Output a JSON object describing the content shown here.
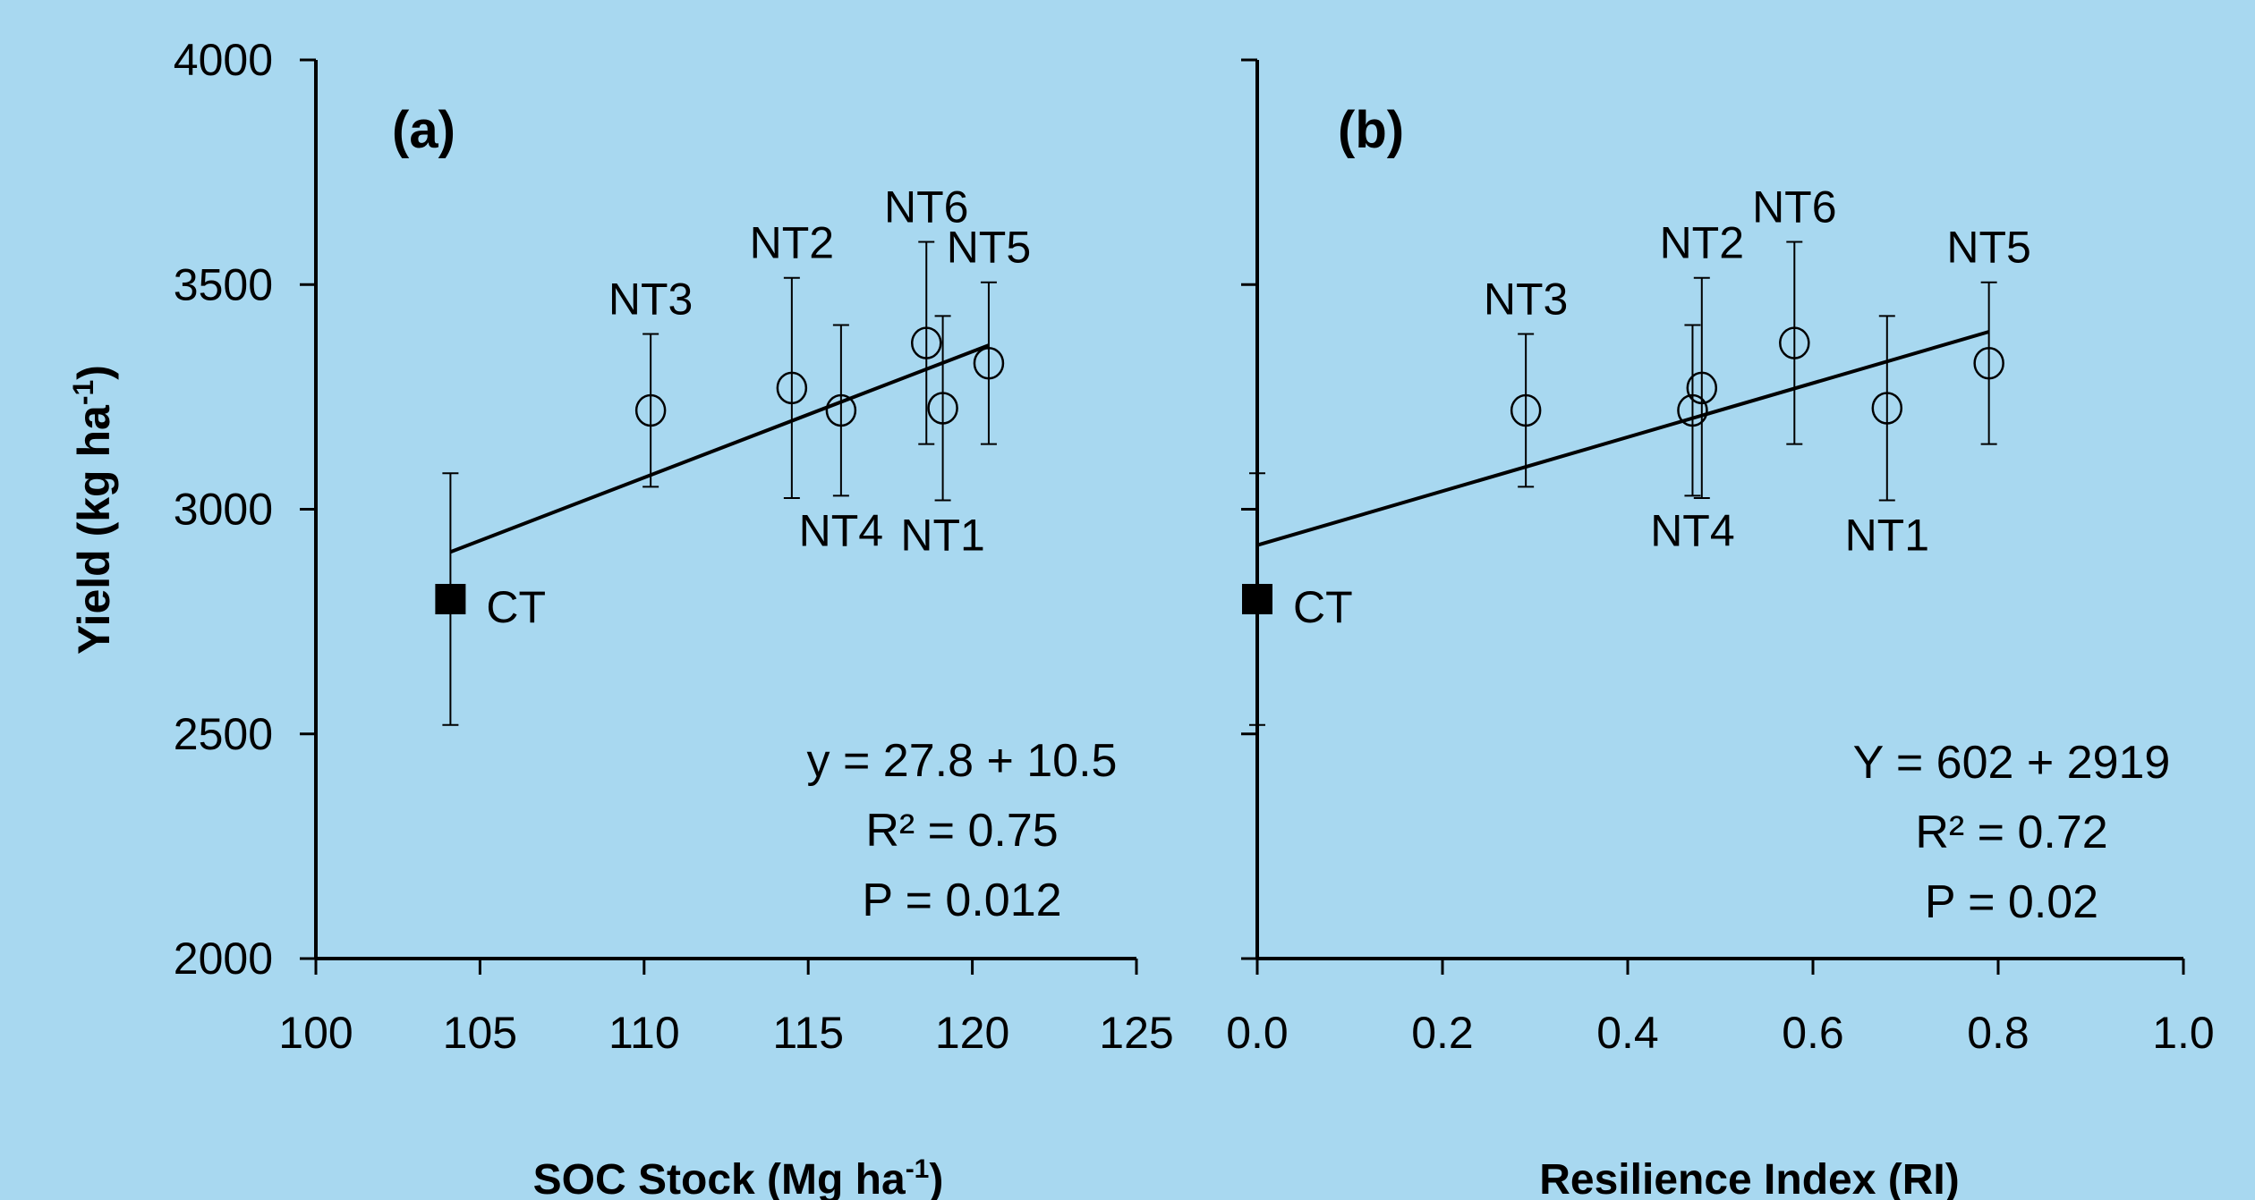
{
  "background": "#a8d8f0",
  "ylabel": "Yield (kg ha",
  "ylabel_sup": "-1",
  "ylabel_end": ")",
  "chart_data": [
    {
      "type": "scatter",
      "panel": "(a)",
      "xlabel": "SOC Stock (Mg ha",
      "xlabel_sup": "-1",
      "xlabel_end": ")",
      "xlim": [
        100,
        125
      ],
      "ylim": [
        2000,
        4000
      ],
      "xticks": [
        100,
        105,
        110,
        115,
        120,
        125
      ],
      "xtick_labels": [
        "100",
        "105",
        "110",
        "115",
        "120",
        "125"
      ],
      "yticks": [
        2000,
        2500,
        3000,
        3500,
        4000
      ],
      "ytick_labels": [
        "2000",
        "2500",
        "3000",
        "3500",
        "4000"
      ],
      "points": [
        {
          "label": "CT",
          "x": 104.1,
          "y": 2800,
          "err": 280,
          "marker": "square",
          "label_pos": "right"
        },
        {
          "label": "NT3",
          "x": 110.2,
          "y": 3220,
          "err": 170,
          "marker": "circle",
          "label_pos": "above"
        },
        {
          "label": "NT2",
          "x": 114.5,
          "y": 3270,
          "err": 245,
          "marker": "circle",
          "label_pos": "above"
        },
        {
          "label": "NT4",
          "x": 116.0,
          "y": 3220,
          "err": 190,
          "marker": "circle",
          "label_pos": "below"
        },
        {
          "label": "NT6",
          "x": 118.6,
          "y": 3370,
          "err": 225,
          "marker": "circle",
          "label_pos": "above"
        },
        {
          "label": "NT1",
          "x": 119.1,
          "y": 3225,
          "err": 205,
          "marker": "circle",
          "label_pos": "below"
        },
        {
          "label": "NT5",
          "x": 120.5,
          "y": 3325,
          "err": 180,
          "marker": "circle",
          "label_pos": "above"
        }
      ],
      "fit_line": {
        "x": [
          104.1,
          120.5
        ],
        "y": [
          2905,
          3365
        ]
      },
      "annotation": [
        "y = 27.8 + 10.5",
        "R² = 0.75",
        "P = 0.012"
      ]
    },
    {
      "type": "scatter",
      "panel": "(b)",
      "xlabel": "Resilience Index (RI)",
      "xlim": [
        0.0,
        1.0
      ],
      "ylim": [
        2000,
        4000
      ],
      "xticks": [
        0.0,
        0.2,
        0.4,
        0.6,
        0.8,
        1.0
      ],
      "xtick_labels": [
        "0.0",
        "0.2",
        "0.4",
        "0.6",
        "0.8",
        "1.0"
      ],
      "yticks": [
        2000,
        2500,
        3000,
        3500,
        4000
      ],
      "points": [
        {
          "label": "CT",
          "x": 0.0,
          "y": 2800,
          "err": 280,
          "marker": "square",
          "label_pos": "right"
        },
        {
          "label": "NT3",
          "x": 0.29,
          "y": 3220,
          "err": 170,
          "marker": "circle",
          "label_pos": "above"
        },
        {
          "label": "NT4",
          "x": 0.47,
          "y": 3220,
          "err": 190,
          "marker": "circle",
          "label_pos": "below"
        },
        {
          "label": "NT2",
          "x": 0.48,
          "y": 3270,
          "err": 245,
          "marker": "circle",
          "label_pos": "above"
        },
        {
          "label": "NT6",
          "x": 0.58,
          "y": 3370,
          "err": 225,
          "marker": "circle",
          "label_pos": "above"
        },
        {
          "label": "NT1",
          "x": 0.68,
          "y": 3225,
          "err": 205,
          "marker": "circle",
          "label_pos": "below"
        },
        {
          "label": "NT5",
          "x": 0.79,
          "y": 3325,
          "err": 180,
          "marker": "circle",
          "label_pos": "above"
        }
      ],
      "fit_line": {
        "x": [
          0.0,
          0.79
        ],
        "y": [
          2920,
          3395
        ]
      },
      "annotation": [
        "Y = 602 + 2919",
        "R² = 0.72",
        "P = 0.02"
      ]
    }
  ]
}
